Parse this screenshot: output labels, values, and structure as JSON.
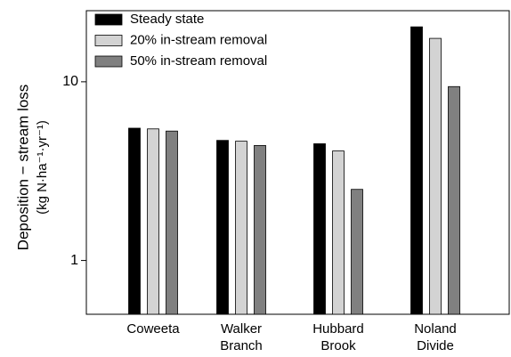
{
  "chart_data": {
    "type": "bar",
    "ylabel": [
      "Deposition − stream loss",
      "(kg N·ha⁻¹·yr⁻¹)"
    ],
    "categories": [
      [
        "Coweeta"
      ],
      [
        "Walker",
        "Branch"
      ],
      [
        "Hubbard",
        "Brook"
      ],
      [
        "Noland",
        "Divide"
      ]
    ],
    "series": [
      {
        "name": "Steady state",
        "color": "#000000",
        "values": [
          5.5,
          4.7,
          4.5,
          20.3
        ]
      },
      {
        "name": "20% in-stream removal",
        "color": "#d3d3d3",
        "values": [
          5.45,
          4.65,
          4.1,
          17.5
        ]
      },
      {
        "name": "50% in-stream removal",
        "color": "#808080",
        "values": [
          5.3,
          4.4,
          2.5,
          9.4
        ]
      }
    ],
    "log_scale": true,
    "ylim": [
      0.5,
      25
    ],
    "yticks": [
      1,
      10
    ],
    "legend": "upper left"
  }
}
